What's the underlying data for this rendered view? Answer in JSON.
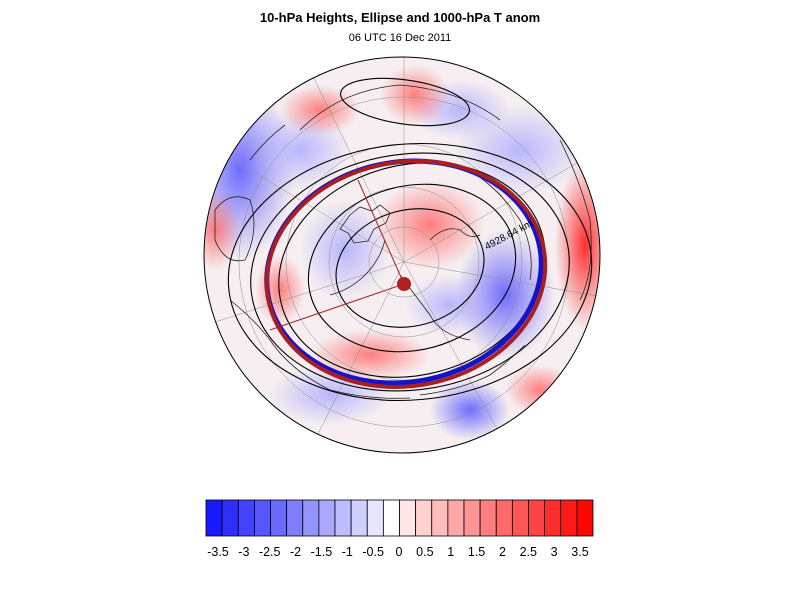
{
  "title": "10-hPa Heights, Ellipse and 1000-hPa T anom",
  "subtitle": "06 UTC 16 Dec 2011",
  "map": {
    "projection": "polar stereographic (north pole)",
    "contour_label": "4928.64 km",
    "colors": {
      "ellipse": "#a81f22",
      "edge_contour": "#1414c8",
      "contour": "#000000",
      "center_marker": "#b02020"
    }
  },
  "colorbar": {
    "labels": [
      "-3.5",
      "-3",
      "-2.5",
      "-2",
      "-1.5",
      "-1",
      "-0.5",
      "0",
      "0.5",
      "1",
      "1.5",
      "2",
      "2.5",
      "3",
      "3.5"
    ],
    "colors": [
      "#1a1aff",
      "#2e2eff",
      "#4242ff",
      "#5656ff",
      "#6a6aff",
      "#7e7eff",
      "#9494ff",
      "#a8a8ff",
      "#bcbcff",
      "#d0d0ff",
      "#e6e6ff",
      "#ffffff",
      "#ffe6e6",
      "#ffd0d0",
      "#ffbcbc",
      "#ffa8a8",
      "#ff9494",
      "#ff7e7e",
      "#ff6a6a",
      "#ff5656",
      "#ff4242",
      "#ff2e2e",
      "#ff1a1a",
      "#ff0505"
    ]
  }
}
